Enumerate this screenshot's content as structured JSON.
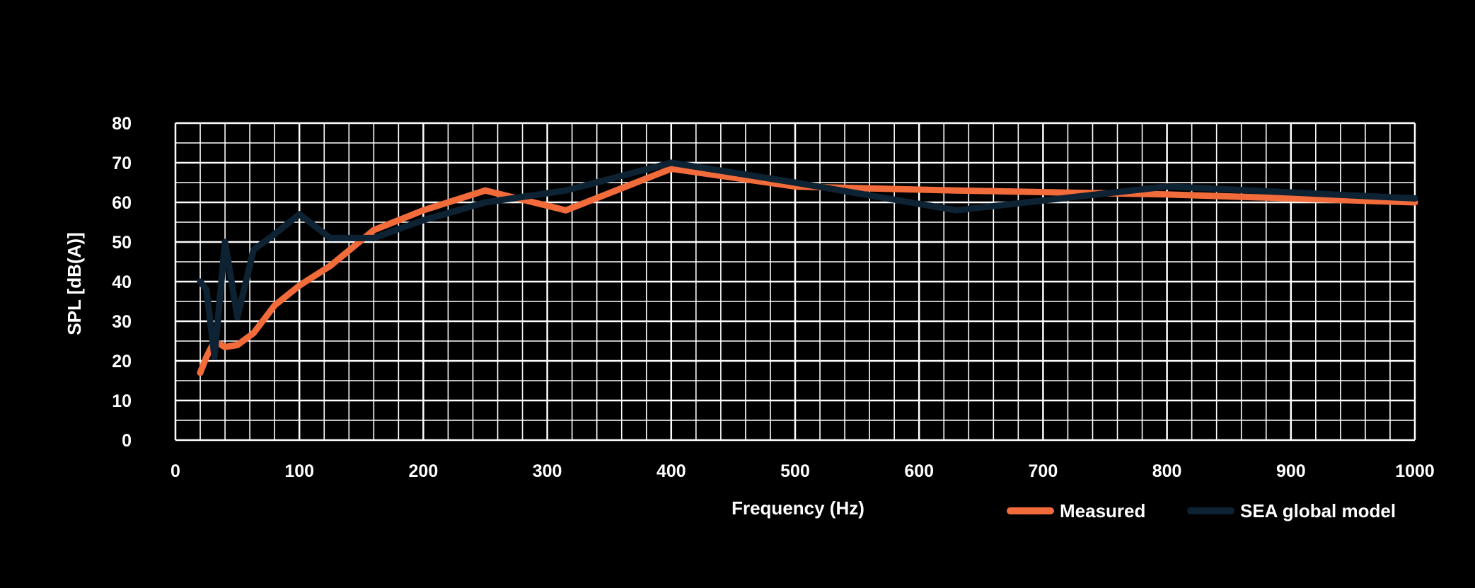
{
  "chart_data": {
    "type": "line",
    "title": "",
    "xlabel": "Frequency (Hz)",
    "ylabel": "SPL [dB(A)]",
    "xlim": [
      0,
      1000
    ],
    "ylim": [
      0,
      80
    ],
    "x_ticks": [
      0,
      100,
      200,
      300,
      400,
      500,
      600,
      700,
      800,
      900,
      1000
    ],
    "x_tick_labels": [
      "0",
      "100",
      "200",
      "300",
      "400",
      "500",
      "600",
      "700",
      "800",
      "900",
      "1000"
    ],
    "y_ticks": [
      0,
      10,
      20,
      30,
      40,
      50,
      60,
      70,
      80
    ],
    "y_tick_labels": [
      "0",
      "10",
      "20",
      "30",
      "40",
      "50",
      "60",
      "70",
      "80"
    ],
    "grid": true,
    "legend_position": "bottom-right",
    "background_color": "#000000",
    "plot_background_color": "#000000",
    "grid_color": "#ffffff",
    "series": [
      {
        "name": "Measured",
        "color": "#f26b3a",
        "x": [
          20,
          25,
          31.5,
          40,
          50,
          63,
          80,
          100,
          125,
          160,
          200,
          250,
          315,
          400,
          500,
          630,
          800,
          1000
        ],
        "y": [
          17,
          21,
          25,
          23.5,
          24,
          27,
          34,
          39,
          44,
          53,
          58,
          63,
          58,
          68.5,
          64,
          63,
          62,
          60
        ]
      },
      {
        "name": "SEA global model",
        "color": "#0d2233",
        "x": [
          20,
          25,
          31.5,
          40,
          50,
          63,
          80,
          100,
          125,
          160,
          200,
          250,
          315,
          400,
          500,
          630,
          800,
          1000
        ],
        "y": [
          40,
          38,
          21,
          50,
          31,
          48,
          52,
          57,
          51,
          51,
          55.5,
          60,
          63,
          70,
          65,
          58,
          64,
          61
        ]
      }
    ]
  }
}
